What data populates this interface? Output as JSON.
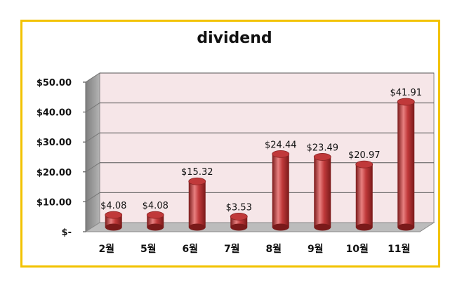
{
  "chart_data": {
    "type": "bar",
    "title": "dividend",
    "categories": [
      "2월",
      "5월",
      "6월",
      "7월",
      "8월",
      "9월",
      "10월",
      "11월"
    ],
    "values": [
      4.08,
      4.08,
      15.32,
      3.53,
      24.44,
      23.49,
      20.97,
      41.91
    ],
    "data_labels": [
      "$4.08",
      "$4.08",
      "$15.32",
      "$3.53",
      "$24.44",
      "$23.49",
      "$20.97",
      "$41.91"
    ],
    "y_ticks": [
      0,
      10,
      20,
      30,
      40,
      50
    ],
    "y_tick_labels": [
      "$-",
      "$10.00",
      "$20.00",
      "$30.00",
      "$40.00",
      "$50.00"
    ],
    "ylim": [
      0,
      50
    ],
    "xlabel": "",
    "ylabel": "",
    "grid": true,
    "legend": "none",
    "bar_style": "3d-cylinder",
    "colors": {
      "bar": "#c0393a",
      "bar_dark": "#7a1a1a",
      "bar_light": "#e88080",
      "wall": "#f6e6e8",
      "side_wall": "#9a9a9a",
      "floor": "#bcbcbc",
      "frame_border": "#f2c200"
    }
  }
}
